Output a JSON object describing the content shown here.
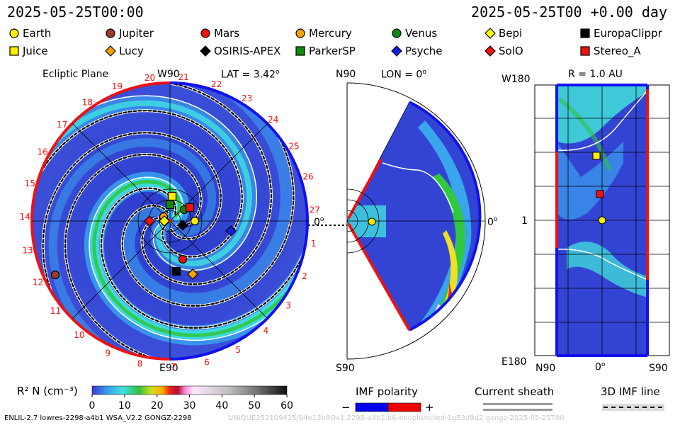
{
  "header": {
    "datetime_left": "2025-05-25T00:00",
    "datetime_right": "2025-05-25T00 +0.00 day"
  },
  "legend": [
    {
      "name": "Earth",
      "shape": "circle",
      "color": "#ffee00"
    },
    {
      "name": "Jupiter",
      "shape": "circle",
      "color": "#9b3c28"
    },
    {
      "name": "Mars",
      "shape": "circle",
      "color": "#ee1111"
    },
    {
      "name": "Mercury",
      "shape": "circle",
      "color": "#f5a300"
    },
    {
      "name": "Venus",
      "shape": "circle",
      "color": "#118811"
    },
    {
      "name": "Bepi",
      "shape": "diamond",
      "color": "#ffff00"
    },
    {
      "name": "EuropaClippr",
      "shape": "square",
      "color": "#000000"
    },
    {
      "name": "Juice",
      "shape": "square",
      "color": "#ffee00"
    },
    {
      "name": "Lucy",
      "shape": "diamond",
      "color": "#f5a300"
    },
    {
      "name": "OSIRIS-APEX",
      "shape": "diamond",
      "color": "#000000"
    },
    {
      "name": "ParkerSP",
      "shape": "square",
      "color": "#118811"
    },
    {
      "name": "Psyche",
      "shape": "diamond",
      "color": "#1122dd"
    },
    {
      "name": "SolO",
      "shape": "diamond",
      "color": "#ee1111"
    },
    {
      "name": "Stereo_A",
      "shape": "square",
      "color": "#ee1111"
    }
  ],
  "panels": {
    "ecliptic": {
      "title": "Ecliptic Plane",
      "top_label": "W90",
      "bottom_label": "E90",
      "lat_label": "LAT = 3.42",
      "zero_label": "0",
      "carrington_ticks": [
        "20",
        "21",
        "22",
        "23",
        "24",
        "25",
        "26",
        "27",
        "1",
        "2",
        "3",
        "4",
        "5",
        "6",
        "7",
        "8",
        "9",
        "10",
        "11",
        "12",
        "13",
        "14",
        "15",
        "16",
        "17",
        "18",
        "19"
      ]
    },
    "meridional": {
      "top_label": "N90",
      "bottom_label": "S90",
      "lon_label": "LON = 0",
      "zero_label": "0"
    },
    "radial": {
      "r_label": "R = 1.0 AU",
      "top_left": "W180",
      "mid_left": "1",
      "bottom_left": "E180",
      "x_left": "N90",
      "x_mid": "0",
      "x_right": "S90"
    }
  },
  "chart_data": {
    "type": "heatmap",
    "colorbar": {
      "label": "R² N (cm⁻³)",
      "ticks": [
        0,
        10,
        20,
        30,
        40,
        50,
        60
      ],
      "range": [
        0,
        60
      ]
    },
    "positions_ecliptic_deg_au": [
      {
        "name": "Earth",
        "lon_deg": 0,
        "r_au": 1.0
      },
      {
        "name": "Mars",
        "lon_deg": -75,
        "r_au": 1.55
      },
      {
        "name": "Jupiter",
        "lon_deg": -158,
        "r_au": 5.2
      }
    ]
  },
  "imf_legend": {
    "title": "IMF polarity",
    "minus": "−",
    "plus": "+",
    "neg_color": "#0000ee",
    "pos_color": "#ee0000"
  },
  "sheath_legend": {
    "title": "Current sheath"
  },
  "imf3d_legend": {
    "title": "3D IMF line"
  },
  "footer": {
    "left": "ENLIL-2.7 lowres-2298-a4b1 WSA_V2.2 GONGZ-2298",
    "right": "UNIQUE252109415/84o13b9Ox1.2298-a4b1.b6-enoplumcled-1g53d9d2.gongz-2025-05-25T00"
  }
}
